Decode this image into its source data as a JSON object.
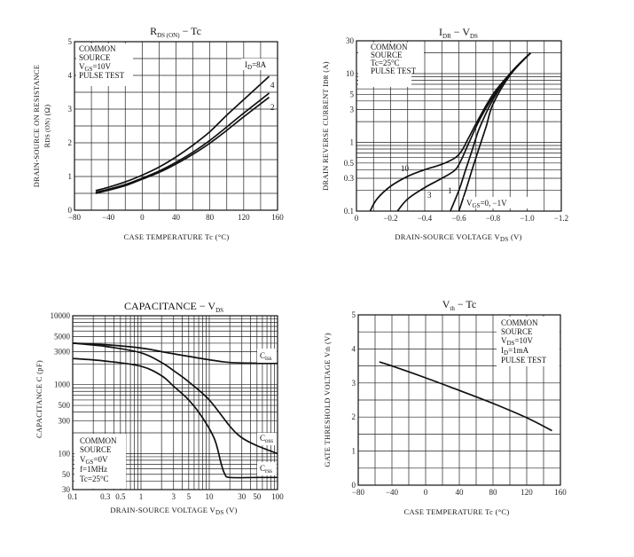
{
  "charts": {
    "rds": {
      "title_main": "R",
      "title_sub": "DS (ON)",
      "title_rest": " − Tc",
      "ylabel_line1": "DRAIN-SOURCE ON RESISTANCE",
      "ylabel_line2_main": "R",
      "ylabel_line2_sub": "DS (ON)",
      "ylabel_line2_unit": " (Ω)",
      "xlabel": "CASE TEMPERATURE   Tc   (°C)",
      "conditions": [
        "COMMON",
        "SOURCE",
        "V_GS=10V",
        "PULSE TEST"
      ],
      "cond_vgs_main": "V",
      "cond_vgs_sub": "GS",
      "cond_vgs_rest": "=10V",
      "id_label_main": "I",
      "id_label_sub": "D",
      "id_label_rest": "=8A",
      "curve_labels": [
        "4",
        "2"
      ]
    },
    "idr": {
      "title_main": "I",
      "title_sub": "DR",
      "title_rest": " − V",
      "title_sub2": "DS",
      "ylabel_main": "DRAIN REVERSE CURRENT  I",
      "ylabel_sub": "DR",
      "ylabel_unit": "  (A)",
      "xlabel_main": "DRAIN-SOURCE VOLTAGE  V",
      "xlabel_sub": "DS",
      "xlabel_unit": "  (V)",
      "cond_common": "COMMON",
      "cond_source": "SOURCE",
      "cond_tc": "Tc=25°C",
      "cond_pulse": "PULSE TEST",
      "vgs_label_main": "V",
      "vgs_label_sub": "GS",
      "vgs_label_rest": "=0,  −1V",
      "curve_labels": [
        "10",
        "3",
        "1"
      ]
    },
    "cap": {
      "title_main": "CAPACITANCE  − V",
      "title_sub": "DS",
      "ylabel": "CAPACITANCE   C   (pF)",
      "xlabel_main": "DRAIN-SOURCE VOLTAGE  V",
      "xlabel_sub": "DS",
      "xlabel_unit": "  (V)",
      "cond_common": "COMMON",
      "cond_source": "SOURCE",
      "cond_vgs_main": "V",
      "cond_vgs_sub": "GS",
      "cond_vgs_rest": "=0V",
      "cond_f": "f=1MHz",
      "cond_tc": "Tc=25°C",
      "label_ciss_main": "C",
      "label_ciss_sub": "iss",
      "label_coss_main": "C",
      "label_coss_sub": "oss",
      "label_crss_main": "C",
      "label_crss_sub": "rss"
    },
    "vth": {
      "title_main": "V",
      "title_sub": "th",
      "title_rest": " − Tc",
      "ylabel_main": "GATE THRESHOLD VOLTAGE  V",
      "ylabel_sub": "th",
      "ylabel_unit": "  (V)",
      "xlabel": "CASE TEMPERATURE   Tc   (°C)",
      "cond_common": "COMMON",
      "cond_source": "SOURCE",
      "cond_vds_main": "V",
      "cond_vds_sub": "DS",
      "cond_vds_rest": "=10V",
      "cond_id_main": "I",
      "cond_id_sub": "D",
      "cond_id_rest": "=1mA",
      "cond_pulse": "PULSE TEST"
    }
  },
  "chart_data": [
    {
      "type": "line",
      "title": "RDS (ON) − Tc",
      "xlabel": "CASE TEMPERATURE Tc (°C)",
      "ylabel": "DRAIN-SOURCE ON RESISTANCE RDS(ON) (Ω)",
      "xlim": [
        -80,
        160
      ],
      "ylim": [
        0,
        5
      ],
      "xticks": [
        -80,
        -40,
        0,
        40,
        80,
        120,
        160
      ],
      "xtick_labels": [
        "−80",
        "−40",
        "0",
        "40",
        "80",
        "120",
        "160"
      ],
      "yticks": [
        0,
        1,
        2,
        3,
        4,
        5
      ],
      "ytick_labels": [
        "0",
        "1",
        "2",
        "3",
        "4",
        "5"
      ],
      "grid": true,
      "series": [
        {
          "name": "ID=8A",
          "x": [
            -55,
            -40,
            -20,
            0,
            20,
            40,
            60,
            80,
            100,
            120,
            150
          ],
          "y": [
            0.58,
            0.68,
            0.84,
            1.04,
            1.28,
            1.58,
            1.93,
            2.33,
            2.82,
            3.28,
            3.97
          ]
        },
        {
          "name": "ID=4A",
          "x": [
            -55,
            -40,
            -20,
            0,
            20,
            40,
            60,
            80,
            100,
            120,
            150
          ],
          "y": [
            0.53,
            0.62,
            0.76,
            0.95,
            1.16,
            1.42,
            1.72,
            2.07,
            2.47,
            2.88,
            3.47
          ]
        },
        {
          "name": "ID=2A",
          "x": [
            -55,
            -40,
            -20,
            0,
            20,
            40,
            60,
            80,
            100,
            120,
            150
          ],
          "y": [
            0.5,
            0.59,
            0.73,
            0.92,
            1.12,
            1.37,
            1.66,
            1.99,
            2.37,
            2.77,
            3.35
          ]
        }
      ]
    },
    {
      "type": "line",
      "title": "IDR − VDS",
      "xlabel": "DRAIN-SOURCE VOLTAGE VDS (V)",
      "ylabel": "DRAIN REVERSE CURRENT IDR (A)",
      "xlim": [
        0,
        -1.2
      ],
      "ylim": [
        0.1,
        30
      ],
      "yscale": "log",
      "xticks": [
        0,
        -0.2,
        -0.4,
        -0.6,
        -0.8,
        -1.0,
        -1.2
      ],
      "xtick_labels": [
        "0",
        "−0.2",
        "−0.4",
        "−0.6",
        "−0.8",
        "−1.0",
        "−1.2"
      ],
      "yticks": [
        0.1,
        0.3,
        0.5,
        1,
        3,
        5,
        10,
        30
      ],
      "ytick_labels": [
        "0.1",
        "0.3",
        "0.5",
        "1",
        "3",
        "5",
        "10",
        "30"
      ],
      "grid": true,
      "series": [
        {
          "name": "VGS=10V",
          "x": [
            -0.08,
            -0.12,
            -0.2,
            -0.3,
            -0.4,
            -0.5,
            -0.58,
            -0.62,
            -0.66,
            -0.72,
            -0.8,
            -0.9,
            -1.02
          ],
          "y": [
            0.1,
            0.15,
            0.23,
            0.32,
            0.4,
            0.48,
            0.6,
            0.78,
            1.2,
            2.3,
            5,
            10,
            20
          ]
        },
        {
          "name": "VGS=3V",
          "x": [
            -0.24,
            -0.3,
            -0.4,
            -0.5,
            -0.58,
            -0.62,
            -0.66,
            -0.72,
            -0.8,
            -0.9,
            -1.02
          ],
          "y": [
            0.1,
            0.15,
            0.22,
            0.3,
            0.4,
            0.6,
            1.0,
            2.1,
            4.6,
            10,
            20
          ]
        },
        {
          "name": "VGS=1V",
          "x": [
            -0.55,
            -0.6,
            -0.64,
            -0.68,
            -0.72,
            -0.8,
            -0.9,
            -1.02
          ],
          "y": [
            0.1,
            0.2,
            0.4,
            0.8,
            1.6,
            4.2,
            10,
            20
          ]
        },
        {
          "name": "VGS=0,-1V",
          "x": [
            -0.6,
            -0.64,
            -0.68,
            -0.72,
            -0.76,
            -0.8,
            -0.9,
            -1.02
          ],
          "y": [
            0.1,
            0.2,
            0.42,
            0.85,
            1.7,
            3.6,
            9.5,
            20
          ]
        }
      ]
    },
    {
      "type": "line",
      "title": "CAPACITANCE − VDS",
      "xlabel": "DRAIN-SOURCE VOLTAGE VDS (V)",
      "ylabel": "CAPACITANCE C (pF)",
      "xscale": "log",
      "yscale": "log",
      "xlim": [
        0.1,
        100
      ],
      "ylim": [
        30,
        10000
      ],
      "xticks": [
        0.1,
        0.3,
        0.5,
        1,
        3,
        5,
        10,
        30,
        50,
        100
      ],
      "xtick_labels": [
        "0.1",
        "0.3",
        "0.5",
        "1",
        "3",
        "5",
        "10",
        "30",
        "50",
        "100"
      ],
      "yticks": [
        30,
        50,
        100,
        300,
        500,
        1000,
        3000,
        5000,
        10000
      ],
      "ytick_labels": [
        "30",
        "50",
        "100",
        "300",
        "500",
        "1000",
        "3000",
        "5000",
        "10000"
      ],
      "grid": true,
      "series": [
        {
          "name": "Ciss",
          "x": [
            0.1,
            0.3,
            1,
            3,
            10,
            20,
            50,
            100
          ],
          "y": [
            4000,
            3800,
            3400,
            2800,
            2300,
            2100,
            2050,
            2050
          ]
        },
        {
          "name": "Coss",
          "x": [
            0.1,
            0.3,
            1,
            2,
            3,
            5,
            10,
            20,
            30,
            50,
            100
          ],
          "y": [
            4000,
            3600,
            2900,
            2100,
            1600,
            1100,
            600,
            250,
            170,
            130,
            100
          ]
        },
        {
          "name": "Crss",
          "x": [
            0.1,
            0.3,
            1,
            2,
            3,
            5,
            8,
            12,
            15,
            17,
            20,
            50,
            100
          ],
          "y": [
            2400,
            2200,
            1850,
            1350,
            950,
            600,
            330,
            160,
            70,
            50,
            45,
            45,
            45
          ]
        }
      ]
    },
    {
      "type": "line",
      "title": "Vth − Tc",
      "xlabel": "CASE TEMPERATURE Tc (°C)",
      "ylabel": "GATE THRESHOLD VOLTAGE Vth (V)",
      "xlim": [
        -80,
        160
      ],
      "ylim": [
        0,
        5
      ],
      "xticks": [
        -80,
        -40,
        0,
        40,
        80,
        120,
        160
      ],
      "xtick_labels": [
        "−80",
        "−40",
        "0",
        "40",
        "80",
        "120",
        "160"
      ],
      "yticks": [
        0,
        1,
        2,
        3,
        4,
        5
      ],
      "ytick_labels": [
        "0",
        "1",
        "2",
        "3",
        "4",
        "5"
      ],
      "grid": true,
      "series": [
        {
          "name": "Vth",
          "x": [
            -55,
            -40,
            0,
            40,
            80,
            120,
            150
          ],
          "y": [
            3.62,
            3.5,
            3.15,
            2.78,
            2.4,
            1.98,
            1.6
          ]
        }
      ]
    }
  ]
}
